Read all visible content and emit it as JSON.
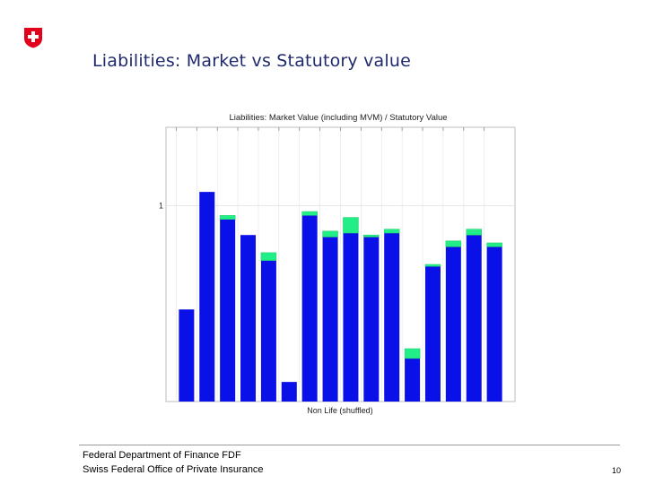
{
  "slide": {
    "title": "Liabilities: Market vs Statutory value",
    "footer_line1": "Federal Department of Finance FDF",
    "footer_line2": "Swiss Federal Office of Private Insurance",
    "page_number": "10",
    "logo_icon": "swiss-cross-shield",
    "logo_color": "#e2001a"
  },
  "chart_data": {
    "type": "bar",
    "title": "Liabilities: Market Value (including MVM) / Statutory Value",
    "xlabel": "Non Life (shuffled)",
    "ylabel": "",
    "yticks": [
      1
    ],
    "ytick_labels": [
      "1"
    ],
    "ylim": [
      0.0,
      1.4
    ],
    "stacked": true,
    "grid": true,
    "series": [
      {
        "color": "#0a10e8",
        "values": [
          0.47,
          1.07,
          0.93,
          0.85,
          0.72,
          0.1,
          0.95,
          0.84,
          0.86,
          0.84,
          0.86,
          0.22,
          0.69,
          0.79,
          0.85,
          0.79
        ]
      },
      {
        "color": "#22ee88",
        "values": [
          0.0,
          0.0,
          0.02,
          0.0,
          0.04,
          0.0,
          0.02,
          0.03,
          0.08,
          0.01,
          0.02,
          0.05,
          0.01,
          0.03,
          0.03,
          0.02
        ]
      }
    ],
    "colors": {
      "segment_edge": "#22cc66",
      "grid": "#e4e4e4",
      "frame": "#bdbdbd"
    }
  }
}
